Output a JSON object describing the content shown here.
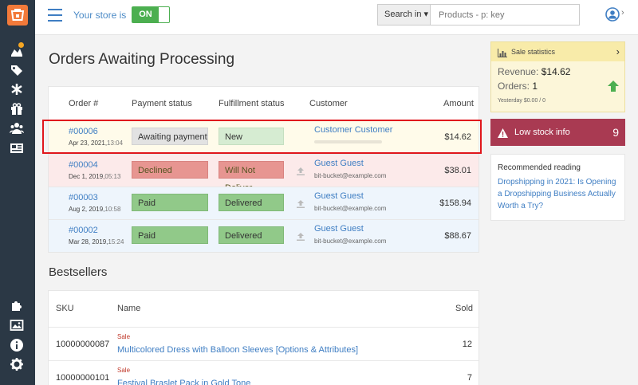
{
  "header": {
    "store_label": "Your store is",
    "store_toggle": "ON",
    "search_button": "Search in ▾",
    "search_placeholder": "Products - p: key",
    "user_chevron": "›"
  },
  "orders": {
    "title": "Orders Awaiting Processing",
    "columns": [
      "Order #",
      "Payment status",
      "Fulfillment status",
      "Customer",
      "Amount"
    ],
    "rows": [
      {
        "number": "#00006",
        "date": "Apr 23, 2021,",
        "time": "13:04",
        "payment": "Awaiting payment",
        "fulfillment": "New",
        "customer": "Customer Customer",
        "email": "",
        "amount": "$14.62"
      },
      {
        "number": "#00004",
        "date": "Dec 1, 2019,",
        "time": "05:13",
        "payment": "Declined",
        "fulfillment": "Will Not Deliver",
        "customer": "Guest Guest",
        "email": "bit-bucket@example.com",
        "amount": "$38.01"
      },
      {
        "number": "#00003",
        "date": "Aug 2, 2019,",
        "time": "10:58",
        "payment": "Paid",
        "fulfillment": "Delivered",
        "customer": "Guest Guest",
        "email": "bit-bucket@example.com",
        "amount": "$158.94"
      },
      {
        "number": "#00002",
        "date": "Mar 28, 2019,",
        "time": "15:24",
        "payment": "Paid",
        "fulfillment": "Delivered",
        "customer": "Guest Guest",
        "email": "bit-bucket@example.com",
        "amount": "$88.67"
      }
    ]
  },
  "bestsellers": {
    "title": "Bestsellers",
    "columns": [
      "SKU",
      "Name",
      "Sold"
    ],
    "rows": [
      {
        "sku": "10000000087",
        "tag": "Sale",
        "name": "Multicolored Dress with Balloon Sleeves [Options & Attributes]",
        "sold": "12"
      },
      {
        "sku": "10000000101",
        "tag": "Sale",
        "name": "Festival Braslet Pack in Gold Tone",
        "sold": "7"
      }
    ]
  },
  "stats": {
    "title": "Sale statistics",
    "chevron": "›",
    "revenue_label": "Revenue:",
    "revenue_value": "$14.62",
    "orders_label": "Orders:",
    "orders_value": "1",
    "yesterday": "Yesterday $0.00 / 0"
  },
  "low_stock": {
    "label": "Low stock info",
    "count": "9"
  },
  "reading": {
    "title": "Recommended reading",
    "link": "Dropshipping in 2021: Is Opening a Dropshipping Business Actually Worth a Try?"
  },
  "colors": {
    "accent": "#3f7ec3",
    "sidebar": "#2b3845",
    "toggle_on": "#4caf50",
    "low_stock": "#a93a52",
    "highlight_box": "#e0161c"
  }
}
